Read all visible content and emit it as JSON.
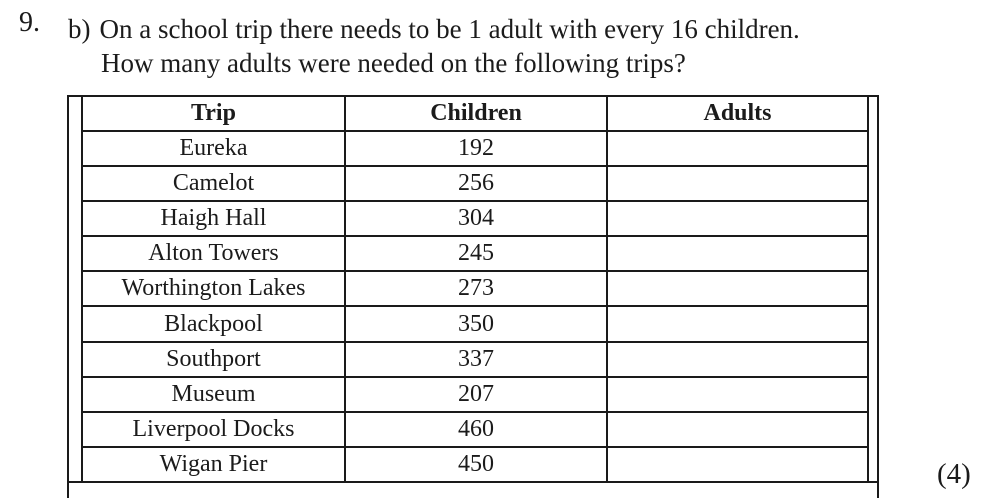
{
  "question": {
    "number": "9.",
    "part": "b)",
    "line1": "On a school trip there needs to be 1 adult with every 16 children.",
    "line2": "How many adults were needed on the following trips?",
    "marks": "(4)"
  },
  "table": {
    "headers": {
      "trip": "Trip",
      "children": "Children",
      "adults": "Adults"
    },
    "rows": [
      {
        "trip": "Eureka",
        "children": "192",
        "adults": ""
      },
      {
        "trip": "Camelot",
        "children": "256",
        "adults": ""
      },
      {
        "trip": "Haigh Hall",
        "children": "304",
        "adults": ""
      },
      {
        "trip": "Alton Towers",
        "children": "245",
        "adults": ""
      },
      {
        "trip": "Worthington Lakes",
        "children": "273",
        "adults": ""
      },
      {
        "trip": "Blackpool",
        "children": "350",
        "adults": ""
      },
      {
        "trip": "Southport",
        "children": "337",
        "adults": ""
      },
      {
        "trip": "Museum",
        "children": "207",
        "adults": ""
      },
      {
        "trip": "Liverpool Docks",
        "children": "460",
        "adults": ""
      },
      {
        "trip": "Wigan Pier",
        "children": "450",
        "adults": ""
      }
    ]
  },
  "colors": {
    "text": "#1b1b1b",
    "line": "#1a1a1a",
    "background": "#ffffff"
  }
}
